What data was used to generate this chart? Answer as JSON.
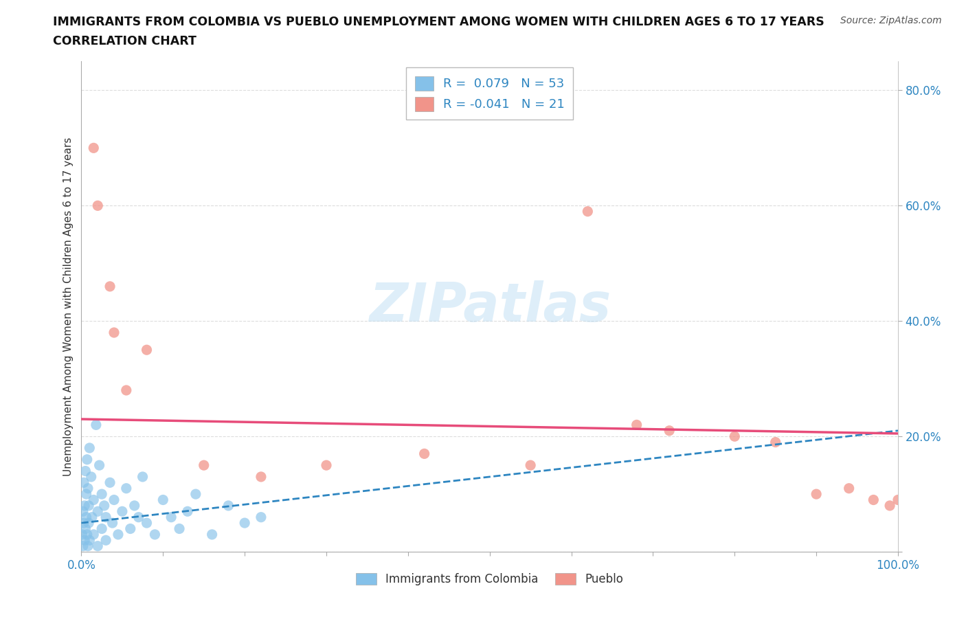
{
  "title_line1": "IMMIGRANTS FROM COLOMBIA VS PUEBLO UNEMPLOYMENT AMONG WOMEN WITH CHILDREN AGES 6 TO 17 YEARS",
  "title_line2": "CORRELATION CHART",
  "source": "Source: ZipAtlas.com",
  "ylabel": "Unemployment Among Women with Children Ages 6 to 17 years",
  "xlim": [
    0,
    100
  ],
  "ylim": [
    0,
    85
  ],
  "colombia_R": 0.079,
  "colombia_N": 53,
  "pueblo_R": -0.041,
  "pueblo_N": 21,
  "colombia_color": "#85C1E9",
  "pueblo_color": "#F1948A",
  "colombia_line_color": "#2E86C1",
  "pueblo_line_color": "#E74C7A",
  "grid_color": "#DDDDDD",
  "background_color": "#FFFFFF",
  "colombia_x": [
    0.1,
    0.2,
    0.2,
    0.3,
    0.3,
    0.4,
    0.4,
    0.5,
    0.5,
    0.6,
    0.6,
    0.7,
    0.7,
    0.8,
    0.8,
    0.9,
    0.9,
    1.0,
    1.0,
    1.2,
    1.3,
    1.5,
    1.5,
    1.8,
    2.0,
    2.0,
    2.2,
    2.5,
    2.5,
    2.8,
    3.0,
    3.0,
    3.5,
    3.8,
    4.0,
    4.5,
    5.0,
    5.5,
    6.0,
    6.5,
    7.0,
    7.5,
    8.0,
    9.0,
    10.0,
    11.0,
    12.0,
    13.0,
    14.0,
    16.0,
    18.0,
    20.0,
    22.0
  ],
  "colombia_y": [
    3.0,
    7.0,
    1.0,
    5.0,
    12.0,
    8.0,
    2.0,
    14.0,
    4.0,
    10.0,
    6.0,
    16.0,
    3.0,
    11.0,
    1.0,
    8.0,
    5.0,
    18.0,
    2.0,
    13.0,
    6.0,
    9.0,
    3.0,
    22.0,
    7.0,
    1.0,
    15.0,
    4.0,
    10.0,
    8.0,
    6.0,
    2.0,
    12.0,
    5.0,
    9.0,
    3.0,
    7.0,
    11.0,
    4.0,
    8.0,
    6.0,
    13.0,
    5.0,
    3.0,
    9.0,
    6.0,
    4.0,
    7.0,
    10.0,
    3.0,
    8.0,
    5.0,
    6.0
  ],
  "pueblo_x": [
    1.5,
    2.0,
    3.5,
    4.0,
    5.5,
    8.0,
    15.0,
    22.0,
    30.0,
    42.0,
    55.0,
    62.0,
    68.0,
    72.0,
    80.0,
    85.0,
    90.0,
    94.0,
    97.0,
    99.0,
    100.0
  ],
  "pueblo_y": [
    70.0,
    60.0,
    46.0,
    38.0,
    28.0,
    35.0,
    15.0,
    13.0,
    15.0,
    17.0,
    15.0,
    59.0,
    22.0,
    21.0,
    20.0,
    19.0,
    10.0,
    11.0,
    9.0,
    8.0,
    9.0
  ],
  "colombia_trend": [
    5.0,
    21.0
  ],
  "pueblo_trend": [
    23.0,
    20.5
  ]
}
